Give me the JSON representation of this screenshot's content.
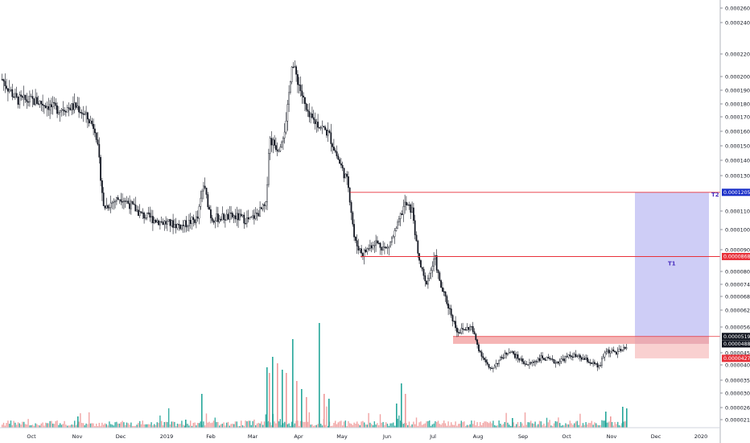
{
  "chart_data": {
    "type": "candlestick",
    "price_axis": {
      "labels": [
        "0.00026000",
        "0.00024000",
        "0.00022000",
        "0.00020000",
        "0.00019000",
        "0.00018000",
        "0.00017000",
        "0.00016000",
        "0.00015000",
        "0.00014000",
        "0.00013000",
        "0.00011000",
        "0.00010000",
        "0.00009000",
        "0.00008000",
        "0.00007400",
        "0.00006800",
        "0.00006200",
        "0.00005600",
        "0.00004500",
        "0.00004000",
        "0.00003500",
        "0.00003050",
        "0.00002600",
        "0.00002150"
      ],
      "values": [
        0.00026,
        0.00024,
        0.00022,
        0.0002,
        0.00019,
        0.00018,
        0.00017,
        0.00016,
        0.00015,
        0.00014,
        0.00013,
        0.00011,
        0.0001,
        9e-05,
        8e-05,
        7.4e-05,
        6.8e-05,
        6.2e-05,
        5.6e-05,
        4.5e-05,
        4e-05,
        3.5e-05,
        3.05e-05,
        2.6e-05,
        2.15e-05
      ]
    },
    "time_axis": {
      "labels": [
        "Oct",
        "Nov",
        "Dec",
        "2019",
        "Feb",
        "Mar",
        "Apr",
        "May",
        "Jun",
        "Jul",
        "Aug",
        "Sep",
        "Oct",
        "Nov",
        "Dec",
        "2020"
      ]
    },
    "price_tags": [
      {
        "id": "t2-level",
        "text": "0.00012055",
        "value": 0.00012055,
        "color": "#1c31c9"
      },
      {
        "id": "t1-level",
        "text": "0.00008685",
        "value": 8.685e-05,
        "color": "#e8313a"
      },
      {
        "id": "current-price",
        "text": "0.00005196",
        "value": 5.196e-05,
        "color": "#131722"
      },
      {
        "id": "entry-price",
        "text": "0.00004881",
        "value": 4.881e-05,
        "color": "#131722"
      },
      {
        "id": "stop-price",
        "text": "0.00004270",
        "value": 4.27e-05,
        "color": "#e8313a"
      }
    ],
    "targets": [
      {
        "label": "T2",
        "value": 0.00012055
      },
      {
        "label": "T1",
        "value": 8.685e-05
      }
    ],
    "horizontal_lines": [
      0.00012055,
      8.685e-05
    ],
    "resistance_zone": {
      "low": 4.881e-05,
      "high": 5.196e-05
    },
    "position_tool": {
      "entry": 4.881e-05,
      "target": 0.00012055,
      "stop": 4.27e-05,
      "profit_color": "#c6c4f4",
      "loss_color": "#f8cbcb"
    },
    "volume_colors": {
      "up": "#26a69a",
      "down": "#ef9a9a"
    },
    "candle_color": "#131722"
  }
}
